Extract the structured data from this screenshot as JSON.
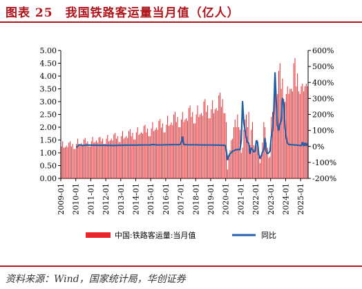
{
  "figure": {
    "title": "图表 25　我国铁路客运量当月值（亿人）",
    "source": "资料来源：Wind，国家统计局，华创证券"
  },
  "colors": {
    "accent": "#b0151c",
    "bar": "#e8262b",
    "line": "#1f5fa8"
  },
  "chart_data": {
    "type": "bar+line",
    "title": "",
    "left_axis": {
      "ylim": [
        0,
        5
      ],
      "ticks": [
        "0.00",
        "0.50",
        "1.00",
        "1.50",
        "2.00",
        "2.50",
        "3.00",
        "3.50",
        "4.00",
        "4.50",
        "5.00"
      ]
    },
    "right_axis": {
      "ylim": [
        -200,
        600
      ],
      "ticks": [
        "-200%",
        "-100%",
        "0%",
        "100%",
        "200%",
        "300%",
        "400%",
        "500%",
        "600%"
      ]
    },
    "x_ticks": [
      "2009-01",
      "2010-01",
      "2011-01",
      "2012-01",
      "2013-01",
      "2014-01",
      "2015-01",
      "2016-01",
      "2017-01",
      "2018-01",
      "2019-01",
      "2020-01",
      "2021-01",
      "2022-01",
      "2023-01",
      "2024-01",
      "2025-01"
    ],
    "x_range": [
      "2009-01",
      "2025-06"
    ],
    "legend": {
      "position": "bottom",
      "bar_label": "中国:铁路客运量:当月值",
      "line_label": "同比"
    },
    "series": [
      {
        "name": "中国:铁路客运量:当月值",
        "type": "bar",
        "axis": "left",
        "year_monthly_values": {
          "2009": [
            1.25,
            1.45,
            1.2,
            1.22,
            1.28,
            1.22,
            1.4,
            1.45,
            1.25,
            1.35,
            1.15,
            1.15
          ],
          "2010": [
            1.35,
            1.55,
            1.3,
            1.32,
            1.38,
            1.3,
            1.52,
            1.58,
            1.38,
            1.45,
            1.25,
            1.25
          ],
          "2011": [
            1.45,
            1.62,
            1.4,
            1.42,
            1.48,
            1.4,
            1.6,
            1.62,
            1.45,
            1.55,
            1.35,
            1.35
          ],
          "2012": [
            1.55,
            1.7,
            1.45,
            1.48,
            1.55,
            1.48,
            1.72,
            1.78,
            1.55,
            1.65,
            1.42,
            1.42
          ],
          "2013": [
            1.65,
            1.85,
            1.55,
            1.6,
            1.65,
            1.58,
            1.85,
            1.92,
            1.65,
            1.78,
            1.52,
            1.52
          ],
          "2014": [
            1.8,
            2.0,
            1.7,
            1.75,
            1.8,
            1.75,
            2.05,
            2.1,
            1.8,
            1.95,
            1.65,
            1.65
          ],
          "2015": [
            1.95,
            2.2,
            1.85,
            1.9,
            1.98,
            1.9,
            2.25,
            2.32,
            1.98,
            2.15,
            1.8,
            1.8
          ],
          "2016": [
            2.1,
            2.45,
            2.05,
            2.1,
            2.18,
            2.08,
            2.5,
            2.6,
            2.2,
            2.4,
            2.0,
            2.0
          ],
          "2017": [
            2.3,
            2.6,
            2.2,
            2.3,
            2.35,
            2.25,
            2.75,
            2.85,
            2.4,
            2.6,
            2.15,
            2.15
          ],
          "2018": [
            2.5,
            2.85,
            2.4,
            2.5,
            2.55,
            2.45,
            3.0,
            3.1,
            2.6,
            2.85,
            2.35,
            2.35
          ],
          "2019": [
            2.7,
            3.05,
            2.55,
            2.7,
            2.75,
            2.65,
            3.25,
            3.35,
            2.8,
            3.1,
            2.55,
            2.55
          ],
          "2020": [
            2.2,
            0.35,
            0.8,
            1.1,
            1.5,
            1.55,
            2.0,
            2.3,
            2.0,
            2.5,
            2.0,
            1.9
          ],
          "2021": [
            1.0,
            1.2,
            1.9,
            2.3,
            2.5,
            2.0,
            2.6,
            1.3,
            1.9,
            2.2,
            1.3,
            1.2
          ],
          "2022": [
            1.4,
            1.5,
            0.9,
            0.6,
            0.9,
            1.4,
            2.2,
            2.0,
            1.4,
            1.2,
            0.8,
            0.85
          ],
          "2023": [
            2.4,
            2.6,
            2.9,
            3.3,
            3.4,
            3.3,
            4.2,
            4.5,
            3.5,
            3.9,
            3.1,
            3.0
          ],
          "2024": [
            3.3,
            3.6,
            3.3,
            3.5,
            3.5,
            3.4,
            4.5,
            4.7,
            3.6,
            4.1,
            3.4,
            3.3
          ],
          "2025": [
            3.6,
            3.7,
            3.4,
            3.6,
            3.7,
            3.6
          ]
        }
      },
      {
        "name": "同比",
        "type": "line",
        "axis": "right",
        "points": [
          [
            "2010-01",
            -7
          ],
          [
            "2010-03",
            10
          ],
          [
            "2010-06",
            6
          ],
          [
            "2010-09",
            8
          ],
          [
            "2010-12",
            8
          ],
          [
            "2011-06",
            7
          ],
          [
            "2011-12",
            7
          ],
          [
            "2012-06",
            6
          ],
          [
            "2012-12",
            7
          ],
          [
            "2013-06",
            8
          ],
          [
            "2013-12",
            8
          ],
          [
            "2014-06",
            9
          ],
          [
            "2014-12",
            9
          ],
          [
            "2015-02",
            12
          ],
          [
            "2015-06",
            9
          ],
          [
            "2015-12",
            10
          ],
          [
            "2016-06",
            11
          ],
          [
            "2016-12",
            11
          ],
          [
            "2017-01",
            25
          ],
          [
            "2017-02",
            60
          ],
          [
            "2017-03",
            12
          ],
          [
            "2017-06",
            10
          ],
          [
            "2017-12",
            10
          ],
          [
            "2018-06",
            9
          ],
          [
            "2018-12",
            9
          ],
          [
            "2019-06",
            8
          ],
          [
            "2019-12",
            7
          ],
          [
            "2020-01",
            -25
          ],
          [
            "2020-02",
            -83
          ],
          [
            "2020-03",
            -60
          ],
          [
            "2020-04",
            -45
          ],
          [
            "2020-05",
            -40
          ],
          [
            "2020-06",
            -30
          ],
          [
            "2020-09",
            -20
          ],
          [
            "2020-12",
            -20
          ],
          [
            "2021-01",
            40
          ],
          [
            "2021-02",
            280
          ],
          [
            "2021-03",
            150
          ],
          [
            "2021-04",
            100
          ],
          [
            "2021-05",
            55
          ],
          [
            "2021-06",
            25
          ],
          [
            "2021-07",
            20
          ],
          [
            "2021-08",
            -45
          ],
          [
            "2021-09",
            -10
          ],
          [
            "2021-10",
            -20
          ],
          [
            "2021-11",
            -35
          ],
          [
            "2021-12",
            -30
          ],
          [
            "2022-01",
            35
          ],
          [
            "2022-02",
            25
          ],
          [
            "2022-03",
            -50
          ],
          [
            "2022-04",
            -75
          ],
          [
            "2022-05",
            -60
          ],
          [
            "2022-06",
            -35
          ],
          [
            "2022-07",
            -20
          ],
          [
            "2022-08",
            50
          ],
          [
            "2022-09",
            -30
          ],
          [
            "2022-10",
            -45
          ],
          [
            "2022-11",
            -40
          ],
          [
            "2022-12",
            -30
          ],
          [
            "2023-01",
            60
          ],
          [
            "2023-02",
            100
          ],
          [
            "2023-03",
            220
          ],
          [
            "2023-04",
            460
          ],
          [
            "2023-05",
            280
          ],
          [
            "2023-06",
            130
          ],
          [
            "2023-07",
            100
          ],
          [
            "2023-08",
            140
          ],
          [
            "2023-09",
            160
          ],
          [
            "2023-10",
            300
          ],
          [
            "2023-11",
            270
          ],
          [
            "2023-12",
            120
          ],
          [
            "2024-01",
            50
          ],
          [
            "2024-02",
            20
          ],
          [
            "2024-03",
            12
          ],
          [
            "2024-06",
            10
          ],
          [
            "2024-09",
            8
          ],
          [
            "2024-12",
            6
          ],
          [
            "2025-01",
            5
          ],
          [
            "2025-02",
            25
          ],
          [
            "2025-03",
            4
          ],
          [
            "2025-04",
            22
          ],
          [
            "2025-05",
            5
          ],
          [
            "2025-06",
            20
          ]
        ]
      }
    ]
  }
}
